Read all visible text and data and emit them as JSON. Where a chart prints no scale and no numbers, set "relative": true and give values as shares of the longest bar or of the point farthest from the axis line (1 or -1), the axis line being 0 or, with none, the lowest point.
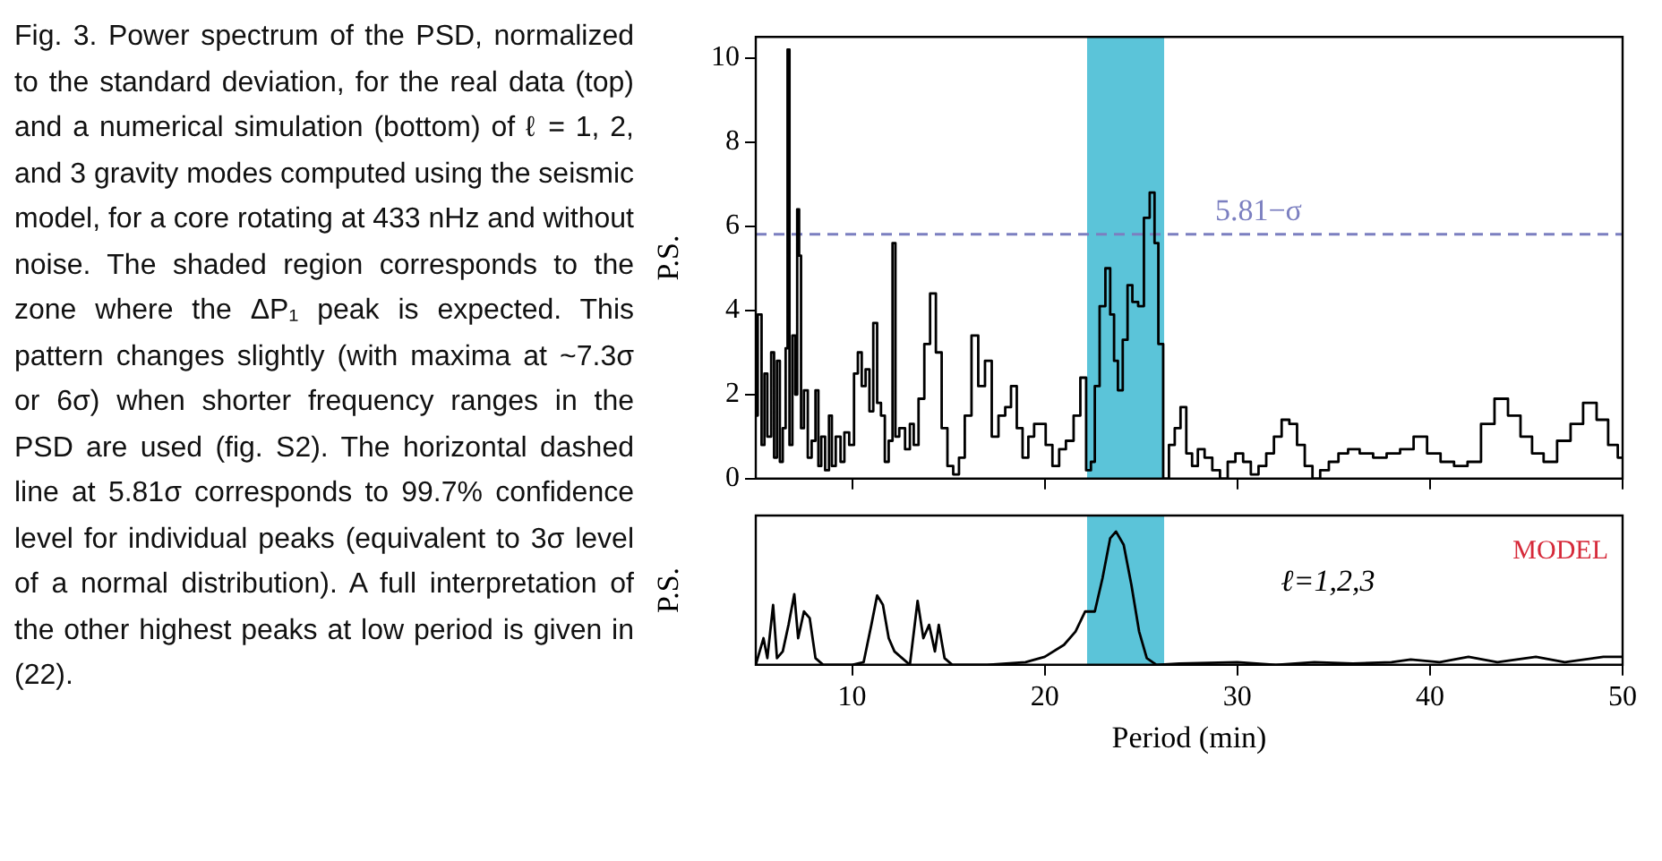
{
  "chart_data": [
    {
      "type": "step",
      "ylabel": "P.S.",
      "annotations": [
        "Fig. 3. Power spectrum of the PSD, normalized to the standard deviation, for the real data (top) and a numerical simulation (bottom) of ℓ = 1, 2, and 3 gravity modes computed using the seismic model, for a core rotating at 433 nHz and without noise. The shaded region corresponds to the zone where the ΔP₁ peak is expected. This pattern changes slightly (with maxima at ~7.3σ or 6σ) when shorter frequency ranges in the PSD are used (fig. S2). The horizontal dashed line at 5.81σ corresponds to 99.7% confidence level for individual peaks (equivalent to 3σ level of a normal distribution). A full interpretation of the other highest peaks at low period is given in (22)."
      ],
      "x": [
        5.0,
        5.2,
        5.4,
        5.5,
        5.7,
        5.9,
        6.0,
        6.2,
        6.3,
        6.5,
        6.6,
        6.7,
        6.8,
        7.0,
        7.1,
        7.2,
        7.3,
        7.4,
        7.6,
        7.8,
        8.0,
        8.2,
        8.3,
        8.5,
        8.7,
        8.9,
        9.0,
        9.3,
        9.5,
        9.7,
        10.0,
        10.2,
        10.4,
        10.6,
        10.8,
        11.0,
        11.2,
        11.4,
        11.6,
        11.8,
        12.0,
        12.2,
        12.3,
        12.6,
        12.9,
        13.1,
        13.3,
        13.6,
        13.9,
        14.2,
        14.5,
        14.8,
        15.1,
        15.4,
        15.7,
        16.0,
        16.4,
        16.7,
        17.1,
        17.4,
        17.8,
        18.1,
        18.4,
        18.7,
        19.0,
        19.3,
        19.6,
        19.9,
        20.2,
        20.6,
        20.9,
        21.3,
        21.7,
        22.0,
        22.3,
        22.5,
        22.7,
        23.0,
        23.3,
        23.5,
        23.7,
        23.9,
        24.2,
        24.4,
        24.7,
        25.0,
        25.3,
        25.6,
        25.8,
        26.0,
        26.3,
        26.6,
        26.9,
        27.2,
        27.5,
        27.8,
        28.1,
        28.5,
        28.9,
        29.3,
        29.7,
        30.1,
        30.5,
        30.9,
        31.3,
        31.7,
        32.1,
        32.5,
        32.9,
        33.3,
        33.7,
        34.1,
        34.5,
        35.0,
        35.5,
        36.0,
        36.7,
        37.4,
        38.1,
        38.8,
        39.5,
        40.2,
        40.9,
        41.6,
        42.3,
        43.0,
        43.7,
        44.4,
        45.0,
        45.6,
        46.2,
        47.0,
        47.6,
        48.3,
        49.0,
        49.5,
        50.0
      ],
      "series": [
        {
          "color": "#000000",
          "values": [
            1.5,
            3.9,
            0.8,
            2.5,
            1.0,
            3.0,
            0.5,
            2.8,
            0.4,
            1.2,
            3.1,
            10.2,
            0.8,
            3.4,
            2.0,
            6.4,
            5.3,
            1.2,
            2.1,
            0.5,
            0.9,
            2.1,
            0.3,
            1.0,
            0.2,
            1.5,
            0.3,
            1.0,
            0.4,
            1.1,
            0.8,
            2.5,
            3.0,
            2.2,
            2.6,
            1.6,
            3.7,
            1.8,
            1.5,
            0.4,
            0.9,
            5.6,
            1.0,
            1.2,
            0.7,
            1.3,
            0.8,
            1.9,
            3.2,
            4.4,
            3.0,
            1.2,
            0.3,
            0.1,
            0.5,
            1.5,
            3.4,
            2.2,
            2.8,
            1.0,
            1.5,
            1.7,
            2.2,
            1.2,
            0.5,
            1.0,
            1.3,
            1.3,
            0.8,
            0.3,
            0.7,
            0.9,
            1.5,
            2.4,
            0.2,
            0.4,
            2.2,
            4.1,
            5.0,
            3.9,
            2.8,
            2.1,
            3.3,
            4.6,
            4.2,
            4.1,
            6.2,
            6.8,
            5.6,
            3.2,
            0.0,
            0.8,
            1.2,
            1.7,
            0.6,
            0.3,
            0.7,
            0.5,
            0.2,
            0.0,
            0.4,
            0.6,
            0.4,
            0.1,
            0.3,
            0.6,
            1.0,
            1.4,
            1.3,
            0.8,
            0.3,
            0.0,
            0.2,
            0.4,
            0.6,
            0.7,
            0.6,
            0.5,
            0.6,
            0.7,
            1.0,
            0.6,
            0.4,
            0.3,
            0.4,
            1.3,
            1.9,
            1.5,
            1.0,
            0.6,
            0.4,
            0.9,
            1.3,
            1.8,
            1.4,
            0.8,
            0.5
          ]
        }
      ],
      "xlim": [
        5,
        50
      ],
      "xticks": [
        10,
        20,
        30,
        40,
        50
      ],
      "ylim": [
        0,
        10.5
      ],
      "yticks": [
        0,
        2,
        4,
        6,
        8,
        10
      ],
      "tick_labels": "y",
      "grid": false,
      "ref_lines": [
        {
          "axis": "y",
          "value": 5.81,
          "label": "5.81−σ",
          "color": "#7b7fc0",
          "line_style": "dashed"
        }
      ],
      "bands": [
        {
          "axis": "x",
          "from": 22.2,
          "to": 26.2,
          "color": "#5bc4d9"
        }
      ]
    },
    {
      "type": "line",
      "ylabel": "P.S.",
      "xlabel": "Period (min)",
      "relative": true,
      "annotations": [
        "MODEL",
        "ℓ=1,2,3"
      ],
      "x": [
        5.0,
        5.4,
        5.6,
        5.9,
        6.1,
        6.4,
        6.7,
        7.0,
        7.2,
        7.5,
        7.8,
        8.1,
        8.5,
        10.0,
        10.6,
        11.0,
        11.3,
        11.6,
        11.9,
        12.2,
        12.6,
        13.0,
        13.4,
        13.7,
        14.0,
        14.3,
        14.5,
        14.8,
        15.2,
        17.0,
        19.0,
        20.0,
        21.0,
        21.6,
        22.1,
        22.6,
        23.0,
        23.4,
        23.7,
        24.1,
        24.5,
        24.9,
        25.3,
        25.8,
        27.0,
        30.0,
        32.0,
        34.0,
        36.0,
        38.0,
        39.0,
        40.5,
        42.0,
        43.5,
        45.5,
        47.0,
        49.0,
        50.0
      ],
      "series": [
        {
          "color": "#000000",
          "values": [
            0,
            0.2,
            0.05,
            0.45,
            0.05,
            0.1,
            0.3,
            0.53,
            0.2,
            0.4,
            0.35,
            0.05,
            0,
            0,
            0.02,
            0.3,
            0.52,
            0.45,
            0.2,
            0.1,
            0.05,
            0,
            0.48,
            0.2,
            0.3,
            0.1,
            0.3,
            0.05,
            0,
            0,
            0.02,
            0.06,
            0.15,
            0.25,
            0.4,
            0.4,
            0.65,
            0.95,
            1,
            0.9,
            0.6,
            0.25,
            0.05,
            0,
            0.01,
            0.02,
            0,
            0.02,
            0.01,
            0.02,
            0.04,
            0.02,
            0.06,
            0.02,
            0.06,
            0.02,
            0.06,
            0.06
          ]
        }
      ],
      "xlim": [
        5,
        50
      ],
      "xticks": [
        10,
        20,
        30,
        40,
        50
      ],
      "tick_labels": "x",
      "grid": false,
      "bands": [
        {
          "axis": "x",
          "from": 22.2,
          "to": 26.2,
          "color": "#5bc4d9"
        }
      ]
    }
  ]
}
